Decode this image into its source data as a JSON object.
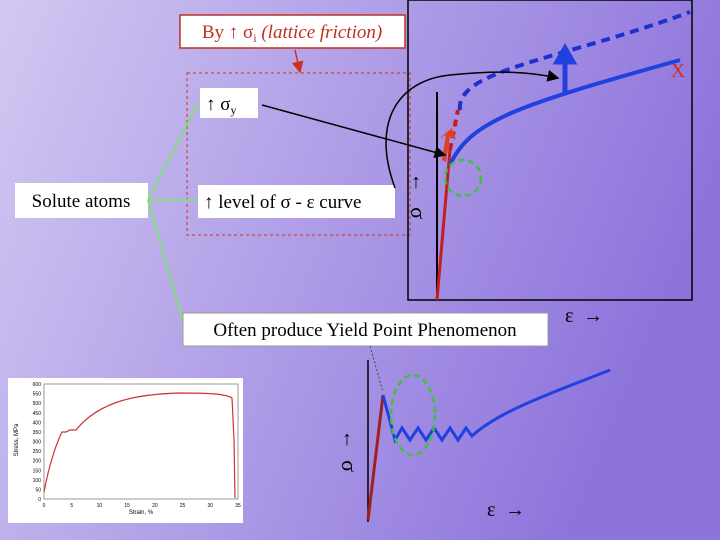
{
  "annotations": {
    "lattice_friction": {
      "prefix": "By ↑ σ",
      "sub": "i",
      "suffix": " (lattice friction)"
    },
    "x_mark": "X"
  },
  "nodes": [
    {
      "label": "Solute atoms"
    },
    {
      "label": "↑ σ",
      "sub": "y"
    },
    {
      "label": "↑ level of σ - ε curve"
    },
    {
      "label": "Often produce Yield Point Phenomenon"
    }
  ],
  "axes": {
    "top": {
      "y_arrow": "↑",
      "y": "σ",
      "x": "ε",
      "x_arrow": "→"
    },
    "bottom": {
      "y_arrow": "↑",
      "y": "σ",
      "x": "ε",
      "x_arrow": "→"
    }
  },
  "inset": {
    "y_title": "Stress, MPa",
    "x_title": "Strain, %",
    "yticks": [
      0,
      50,
      100,
      150,
      200,
      250,
      300,
      350,
      400,
      450,
      500,
      550,
      600
    ],
    "xticks": [
      0,
      5,
      10,
      15,
      20,
      25,
      30,
      35
    ]
  }
}
